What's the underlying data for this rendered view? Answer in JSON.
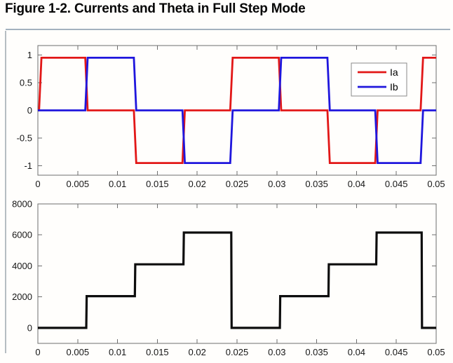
{
  "page": {
    "title": "Figure 1-2. Currents and Theta in Full Step Mode",
    "rule_color": "#a3b2bf",
    "border_color": "#b6bdc2",
    "axis_color": "#6e6e6e",
    "tick_label_color": "#161616"
  },
  "chart_data": [
    {
      "id": "currents",
      "type": "line",
      "title": "",
      "xlabel": "",
      "ylabel": "",
      "xlim": [
        0,
        0.05
      ],
      "ylim": [
        -1.17,
        1.17
      ],
      "grid": false,
      "x_ticks": [
        0,
        0.005,
        0.01,
        0.015,
        0.02,
        0.025,
        0.03,
        0.035,
        0.04,
        0.045,
        0.05
      ],
      "x_tick_labels": [
        "0",
        "0.005",
        "0.01",
        "0.015",
        "0.02",
        "0.025",
        "0.03",
        "0.035",
        "0.04",
        "0.045",
        "0.05"
      ],
      "y_ticks": [
        -1,
        -0.5,
        0,
        0.5,
        1
      ],
      "y_tick_labels": [
        "-1",
        "-0.5",
        "0",
        "0.5",
        "1"
      ],
      "legend": {
        "position": "upper-right",
        "entries": [
          {
            "label": "Ia",
            "color": "#e21717"
          },
          {
            "label": "Ib",
            "color": "#1f16dd"
          }
        ]
      },
      "series": [
        {
          "name": "Ia",
          "color": "#e21717",
          "step_mode": true,
          "transition_width": 0.0003,
          "breakpoints": [
            0,
            0.0003,
            0.0061,
            0.0122,
            0.0183,
            0.0243,
            0.0304,
            0.0365,
            0.0425,
            0.0482,
            0.05
          ],
          "levels": [
            0,
            0.95,
            0,
            -0.95,
            0,
            0.95,
            0,
            -0.95,
            0,
            0.95
          ]
        },
        {
          "name": "Ib",
          "color": "#1f16dd",
          "step_mode": true,
          "transition_width": 0.0003,
          "breakpoints": [
            0,
            0.0003,
            0.0061,
            0.0122,
            0.0183,
            0.0243,
            0.0304,
            0.0365,
            0.0425,
            0.0482,
            0.05
          ],
          "levels": [
            0,
            0,
            0.95,
            0,
            -0.95,
            0,
            0.95,
            0,
            -0.95,
            0
          ]
        }
      ]
    },
    {
      "id": "theta",
      "type": "line",
      "title": "",
      "xlabel": "",
      "ylabel": "",
      "xlim": [
        0,
        0.05
      ],
      "ylim": [
        -1000,
        8000
      ],
      "grid": false,
      "x_ticks": [
        0,
        0.005,
        0.01,
        0.015,
        0.02,
        0.025,
        0.03,
        0.035,
        0.04,
        0.045,
        0.05
      ],
      "x_tick_labels": [
        "0",
        "0.005",
        "0.01",
        "0.015",
        "0.02",
        "0.025",
        "0.03",
        "0.035",
        "0.04",
        "0.045",
        "0.05"
      ],
      "y_ticks": [
        0,
        2000,
        4000,
        6000,
        8000
      ],
      "y_tick_labels": [
        "0",
        "2000",
        "4000",
        "6000",
        "8000"
      ],
      "series": [
        {
          "name": "Theta",
          "color": "#0d0d0d",
          "step_mode": true,
          "transition_width": 5e-05,
          "breakpoints": [
            0,
            0.0061,
            0.0122,
            0.0183,
            0.0243,
            0.0304,
            0.0365,
            0.0425,
            0.0482,
            0.05
          ],
          "levels": [
            0,
            2050,
            4100,
            6150,
            0,
            2050,
            4100,
            6150,
            0
          ]
        }
      ]
    }
  ]
}
